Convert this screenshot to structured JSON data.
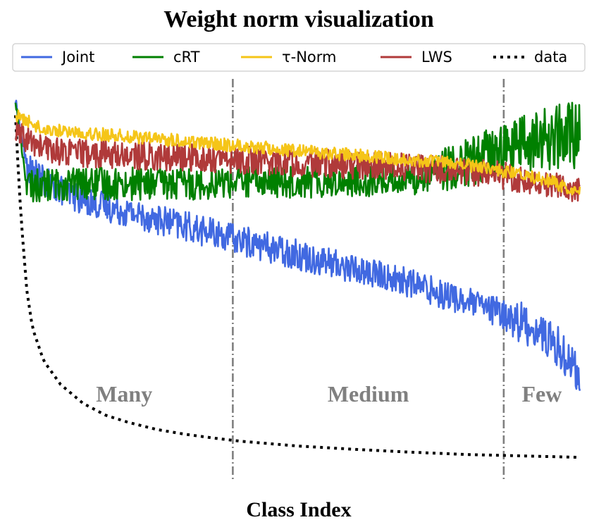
{
  "chart_data": {
    "type": "line",
    "title": "Weight norm visualization",
    "xlabel": "Class Index",
    "ylabel": "",
    "grid": false,
    "legend_position": "top",
    "regions": [
      {
        "label": "Many",
        "start": 0,
        "end": 385
      },
      {
        "label": "Medium",
        "start": 385,
        "end": 865
      },
      {
        "label": "Few",
        "start": 865,
        "end": 1000
      }
    ],
    "x_range": [
      0,
      1000
    ],
    "series": [
      {
        "name": "Joint",
        "color": "#4169e1",
        "x": [
          0,
          20,
          50,
          100,
          150,
          200,
          250,
          300,
          350,
          400,
          450,
          500,
          550,
          600,
          650,
          700,
          750,
          800,
          850,
          900,
          930,
          960,
          980,
          1000
        ],
        "y": [
          1.0,
          0.86,
          0.83,
          0.8,
          0.78,
          0.765,
          0.75,
          0.735,
          0.72,
          0.705,
          0.69,
          0.675,
          0.66,
          0.645,
          0.63,
          0.615,
          0.595,
          0.575,
          0.555,
          0.53,
          0.51,
          0.48,
          0.455,
          0.42
        ]
      },
      {
        "name": "cRT",
        "color": "#008000",
        "x": [
          0,
          20,
          100,
          200,
          300,
          400,
          500,
          600,
          700,
          750,
          800,
          850,
          900,
          950,
          1000
        ],
        "y": [
          1.0,
          0.82,
          0.825,
          0.825,
          0.825,
          0.83,
          0.83,
          0.83,
          0.835,
          0.85,
          0.87,
          0.89,
          0.91,
          0.92,
          0.93
        ]
      },
      {
        "name": "τ-Norm",
        "color": "#f5c518",
        "x": [
          0,
          50,
          100,
          200,
          300,
          400,
          500,
          600,
          700,
          800,
          850,
          900,
          950,
          1000
        ],
        "y": [
          0.97,
          0.94,
          0.935,
          0.925,
          0.915,
          0.905,
          0.895,
          0.885,
          0.875,
          0.865,
          0.855,
          0.845,
          0.83,
          0.805
        ]
      },
      {
        "name": "LWS",
        "color": "#b03a3a",
        "x": [
          0,
          50,
          100,
          200,
          300,
          400,
          500,
          600,
          700,
          800,
          850,
          900,
          950,
          1000
        ],
        "y": [
          0.93,
          0.9,
          0.89,
          0.885,
          0.88,
          0.875,
          0.87,
          0.865,
          0.86,
          0.85,
          0.845,
          0.835,
          0.825,
          0.81
        ]
      },
      {
        "name": "data",
        "color": "#000000",
        "style": "dotted",
        "x": [
          0,
          5,
          10,
          20,
          30,
          50,
          80,
          120,
          160,
          200,
          250,
          300,
          350,
          400,
          500,
          600,
          700,
          800,
          900,
          1000
        ],
        "y": [
          0.97,
          0.85,
          0.75,
          0.6,
          0.52,
          0.45,
          0.4,
          0.36,
          0.335,
          0.32,
          0.305,
          0.295,
          0.287,
          0.28,
          0.27,
          0.263,
          0.257,
          0.252,
          0.249,
          0.246
        ]
      }
    ]
  }
}
